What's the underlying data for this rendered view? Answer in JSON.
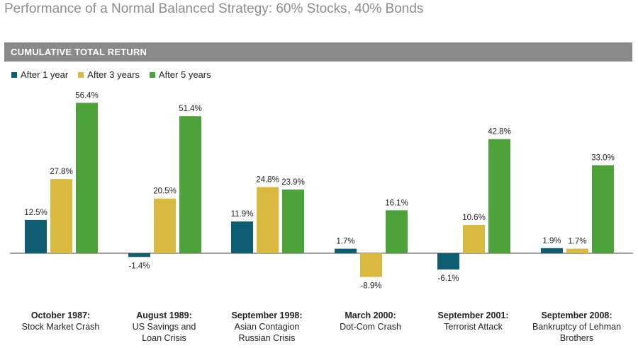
{
  "title": "Performance of a Normal Balanced Strategy: 60% Stocks, 40% Bonds",
  "section_header": "CUMULATIVE TOTAL RETURN",
  "chart_data": {
    "type": "bar",
    "categories": [
      {
        "event": "October 1987:",
        "desc": [
          "Stock Market Crash"
        ]
      },
      {
        "event": "August 1989:",
        "desc": [
          "US Savings and",
          "Loan Crisis"
        ]
      },
      {
        "event": "September 1998:",
        "desc": [
          "Asian Contagion",
          "Russian Crisis"
        ]
      },
      {
        "event": "March 2000:",
        "desc": [
          "Dot-Com Crash"
        ]
      },
      {
        "event": "September 2001:",
        "desc": [
          "Terrorist Attack"
        ]
      },
      {
        "event": "September 2008:",
        "desc": [
          "Bankruptcy of Lehman",
          "Brothers"
        ]
      }
    ],
    "series": [
      {
        "name": "After 1 year",
        "color": "#0d5e73",
        "values": [
          12.5,
          -1.4,
          11.9,
          1.7,
          -6.1,
          1.9
        ],
        "labels": [
          "12.5%",
          "-1.4%",
          "11.9%",
          "1.7%",
          "-6.1%",
          "1.9%"
        ]
      },
      {
        "name": "After 3 years",
        "color": "#d9b940",
        "values": [
          27.8,
          20.5,
          24.8,
          -8.9,
          10.6,
          1.7
        ],
        "labels": [
          "27.8%",
          "20.5%",
          "24.8%",
          "-8.9%",
          "10.6%",
          "1.7%"
        ]
      },
      {
        "name": "After 5 years",
        "color": "#4ea23a",
        "values": [
          56.4,
          51.4,
          23.9,
          16.1,
          42.8,
          33.0
        ],
        "labels": [
          "56.4%",
          "51.4%",
          "23.9%",
          "16.1%",
          "42.8%",
          "33.0%"
        ]
      }
    ],
    "ylim": [
      -8.9,
      56.4
    ],
    "baseline_color": "#444444"
  }
}
